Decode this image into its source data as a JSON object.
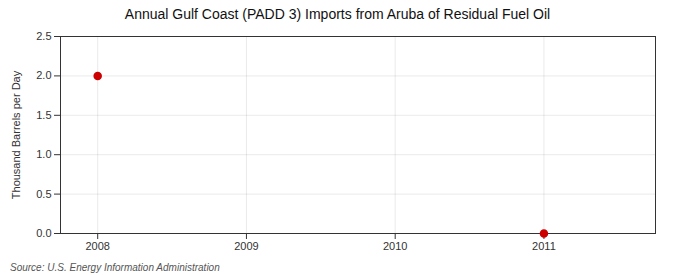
{
  "chart_data": {
    "type": "scatter",
    "title": "Annual Gulf Coast (PADD 3) Imports from Aruba of Residual Fuel Oil",
    "y_label": "Thousand Barrels per Day",
    "source": "Source: U.S. Energy Information Administration",
    "x": [
      2008,
      2011
    ],
    "values": [
      2.0,
      0.0
    ],
    "color": "#cc0000",
    "marker": "circle",
    "xlim": [
      2007.75,
      2011.75
    ],
    "ylim": [
      0.0,
      2.5
    ],
    "xticks": [
      2008,
      2009,
      2010,
      2011
    ],
    "yticks": [
      {
        "value": 0.0,
        "label": "0.0"
      },
      0.5,
      {
        "value": 1.0,
        "label": "1.0"
      },
      1.5,
      {
        "value": 2.0,
        "label": "2.0"
      },
      2.5
    ],
    "grid": true
  }
}
